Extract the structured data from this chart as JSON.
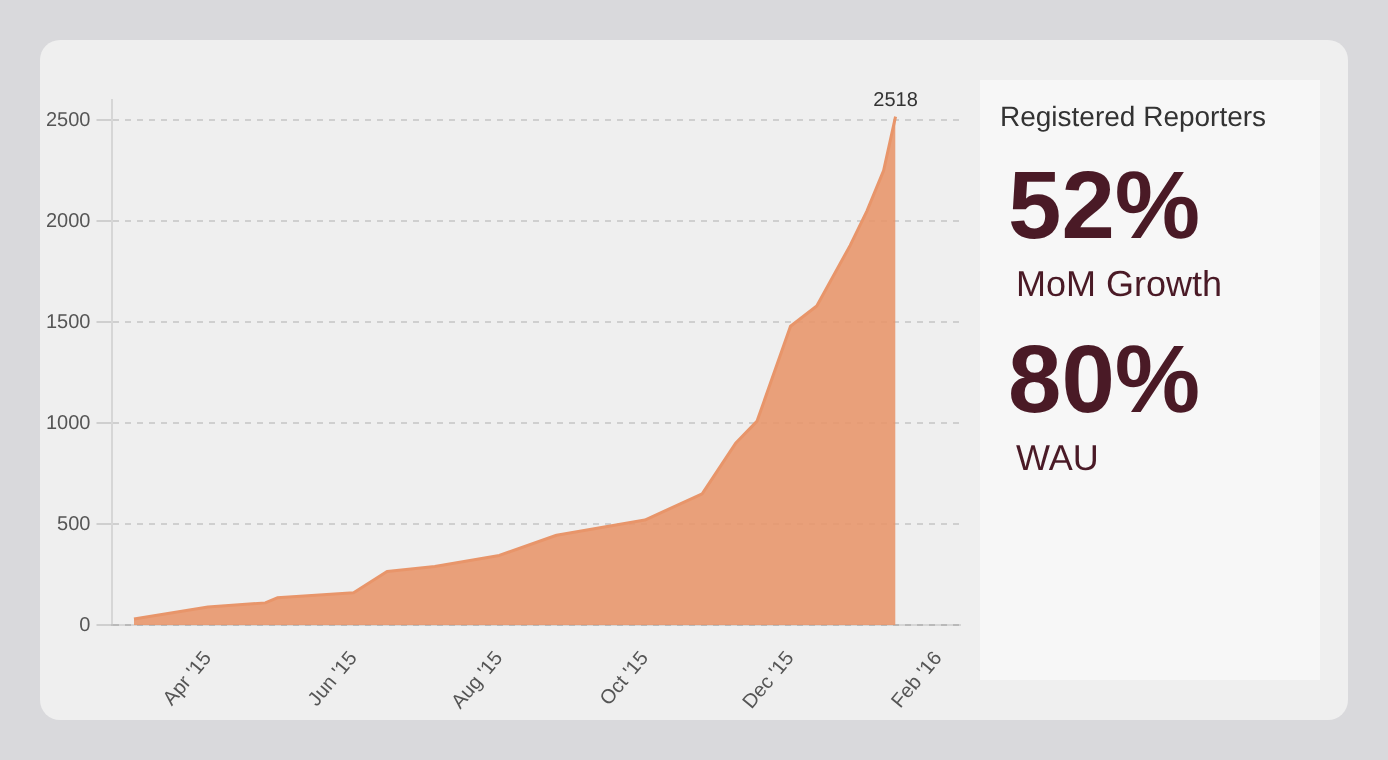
{
  "chart_data": [
    {
      "type": "area",
      "x": [
        "2015-03-01",
        "2015-04-01",
        "2015-04-25",
        "2015-04-30",
        "2015-06-01",
        "2015-06-15",
        "2015-07-05",
        "2015-08-01",
        "2015-08-25",
        "2015-10-01",
        "2015-10-25",
        "2015-11-08",
        "2015-11-17",
        "2015-12-01",
        "2015-12-12",
        "2015-12-26",
        "2016-01-02",
        "2016-01-09",
        "2016-01-14"
      ],
      "series": [
        {
          "color": "#e8956a",
          "values": [
            30,
            90,
            110,
            135,
            160,
            265,
            290,
            345,
            445,
            520,
            650,
            900,
            1010,
            1480,
            1580,
            1880,
            2050,
            2250,
            2518
          ]
        }
      ],
      "xlim": [
        "2015-02-20",
        "2016-02-10"
      ],
      "xticks": [
        {
          "value": "2015-04-01",
          "label": "Apr '15"
        },
        {
          "value": "2015-06-01",
          "label": "Jun '15"
        },
        {
          "value": "2015-08-01",
          "label": "Aug '15"
        },
        {
          "value": "2015-10-01",
          "label": "Oct '15"
        },
        {
          "value": "2015-12-01",
          "label": "Dec '15"
        },
        {
          "value": "2016-02-01",
          "label": "Feb '16"
        }
      ],
      "ylim": [
        0,
        2600
      ],
      "yticks": [
        0,
        500,
        1000,
        1500,
        2000,
        2500
      ],
      "grid": "y",
      "legend": false,
      "annotations": [
        {
          "text": "2518",
          "x": "2016-01-14",
          "y": 2518
        }
      ]
    },
    {
      "type": "other",
      "title": "Registered Reporters",
      "annotations": [
        "52%",
        "MoM Growth",
        "80%",
        "WAU"
      ]
    }
  ]
}
